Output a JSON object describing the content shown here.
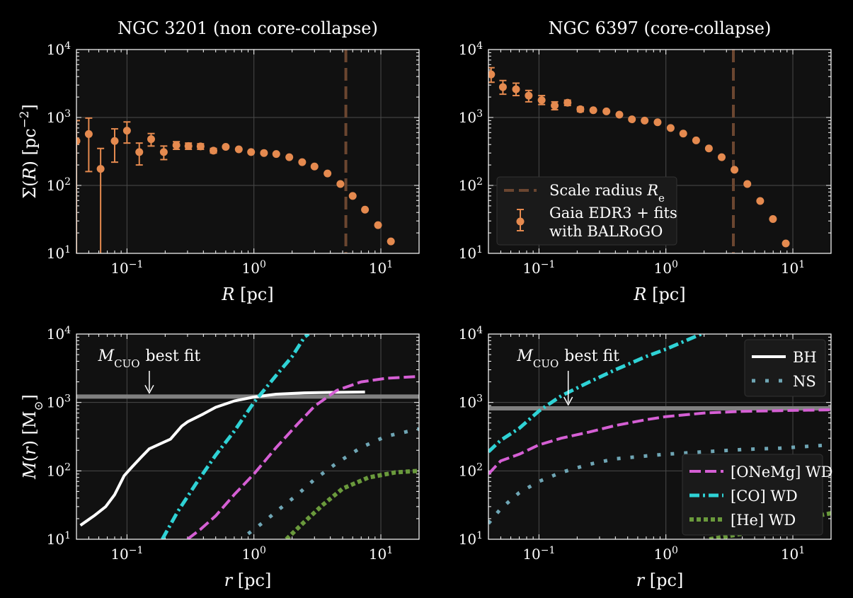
{
  "colors": {
    "background": "#000000",
    "axes_bg": "#111111",
    "grid": "#4a4a4a",
    "text": "#ffffff",
    "sigma_points": "#e58a4f",
    "scale_radius_line": "#6b4630",
    "cuo_line": "#808080",
    "BH": "#ffffff",
    "NS": "#6fa6b5",
    "ONeMg": "#d55fd4",
    "CO": "#2fd2d5",
    "He": "#6a9a3c"
  },
  "chart_data": [
    {
      "id": "top-left",
      "type": "scatter",
      "title": "NGC 3201 (non core-collapse)",
      "xlabel": "R [pc]",
      "ylabel": "Σ(R)  [pc⁻²]",
      "xscale": "log",
      "yscale": "log",
      "xlim": [
        0.04,
        20
      ],
      "ylim": [
        10,
        10000
      ],
      "grid": true,
      "xticks": [
        "10⁻¹",
        "10⁰",
        "10¹"
      ],
      "yticks": [
        "10¹",
        "10²",
        "10³",
        "10⁴"
      ],
      "scale_radius": 5.3,
      "points": [
        {
          "x": 0.04,
          "y": 450,
          "lo": 10,
          "hi": 900
        },
        {
          "x": 0.05,
          "y": 570,
          "lo": 160,
          "hi": 980
        },
        {
          "x": 0.062,
          "y": 175,
          "lo": 10,
          "hi": 350
        },
        {
          "x": 0.08,
          "y": 450,
          "lo": 220,
          "hi": 680
        },
        {
          "x": 0.1,
          "y": 640,
          "lo": 420,
          "hi": 860
        },
        {
          "x": 0.125,
          "y": 310,
          "lo": 200,
          "hi": 420
        },
        {
          "x": 0.155,
          "y": 480,
          "lo": 380,
          "hi": 580
        },
        {
          "x": 0.195,
          "y": 310,
          "lo": 240,
          "hi": 380
        },
        {
          "x": 0.245,
          "y": 390,
          "lo": 340,
          "hi": 440
        },
        {
          "x": 0.305,
          "y": 380,
          "lo": 340,
          "hi": 420
        },
        {
          "x": 0.38,
          "y": 375,
          "lo": 340,
          "hi": 410
        },
        {
          "x": 0.48,
          "y": 325,
          "lo": 300,
          "hi": 350
        },
        {
          "x": 0.6,
          "y": 370,
          "lo": 355,
          "hi": 385
        },
        {
          "x": 0.76,
          "y": 340
        },
        {
          "x": 0.95,
          "y": 310
        },
        {
          "x": 1.2,
          "y": 300
        },
        {
          "x": 1.5,
          "y": 290
        },
        {
          "x": 1.9,
          "y": 260
        },
        {
          "x": 2.4,
          "y": 220
        },
        {
          "x": 3.0,
          "y": 190
        },
        {
          "x": 3.8,
          "y": 150
        },
        {
          "x": 4.8,
          "y": 105
        },
        {
          "x": 6.0,
          "y": 70
        },
        {
          "x": 7.5,
          "y": 44
        },
        {
          "x": 9.5,
          "y": 26
        },
        {
          "x": 12.0,
          "y": 15
        }
      ]
    },
    {
      "id": "top-right",
      "type": "scatter",
      "title": "NGC 6397 (core-collapse)",
      "xlabel": "R [pc]",
      "ylabel": "",
      "xscale": "log",
      "yscale": "log",
      "xlim": [
        0.04,
        20
      ],
      "ylim": [
        10,
        10000
      ],
      "grid": true,
      "xticks": [
        "10⁻¹",
        "10⁰",
        "10¹"
      ],
      "yticks": [
        "10¹",
        "10²",
        "10³",
        "10⁴"
      ],
      "scale_radius": 3.4,
      "legend": {
        "placement": "center-left",
        "scale_label": "Scale radius ",
        "scale_symbol": "R",
        "scale_sub": "e",
        "points_label_1": "Gaia EDR3 + fits",
        "points_label_2": "with BALRoGO"
      },
      "points": [
        {
          "x": 0.042,
          "y": 4300,
          "lo": 3300,
          "hi": 5400
        },
        {
          "x": 0.052,
          "y": 2800,
          "lo": 2200,
          "hi": 3500
        },
        {
          "x": 0.066,
          "y": 2600,
          "lo": 2100,
          "hi": 3200
        },
        {
          "x": 0.083,
          "y": 2100,
          "lo": 1700,
          "hi": 2500
        },
        {
          "x": 0.105,
          "y": 1800,
          "lo": 1550,
          "hi": 2100
        },
        {
          "x": 0.133,
          "y": 1500,
          "lo": 1300,
          "hi": 1700
        },
        {
          "x": 0.168,
          "y": 1650,
          "lo": 1500,
          "hi": 1800
        },
        {
          "x": 0.212,
          "y": 1320,
          "lo": 1220,
          "hi": 1420
        },
        {
          "x": 0.268,
          "y": 1280
        },
        {
          "x": 0.34,
          "y": 1230
        },
        {
          "x": 0.43,
          "y": 1100
        },
        {
          "x": 0.54,
          "y": 940
        },
        {
          "x": 0.68,
          "y": 900
        },
        {
          "x": 0.86,
          "y": 850
        },
        {
          "x": 1.09,
          "y": 700
        },
        {
          "x": 1.37,
          "y": 580
        },
        {
          "x": 1.73,
          "y": 460
        },
        {
          "x": 2.18,
          "y": 350
        },
        {
          "x": 2.75,
          "y": 260
        },
        {
          "x": 3.47,
          "y": 170
        },
        {
          "x": 4.38,
          "y": 105
        },
        {
          "x": 5.53,
          "y": 59
        },
        {
          "x": 6.97,
          "y": 32
        },
        {
          "x": 8.8,
          "y": 14
        }
      ]
    },
    {
      "id": "bottom-left",
      "type": "line",
      "xlabel": "r [pc]",
      "ylabel": "M(r)  [M⊙]",
      "xscale": "log",
      "yscale": "log",
      "xlim": [
        0.04,
        20
      ],
      "ylim": [
        10,
        10000
      ],
      "grid": true,
      "xticks": [
        "10⁻¹",
        "10⁰",
        "10¹"
      ],
      "yticks": [
        "10¹",
        "10²",
        "10³",
        "10⁴"
      ],
      "cuo_value": 1220,
      "cuo_label": {
        "symbol": "M",
        "sub": "CUO",
        "text": "best fit",
        "at_x": 0.15
      },
      "series": [
        {
          "key": "BH",
          "style": "solid",
          "points": [
            [
              0.043,
              16
            ],
            [
              0.055,
              22
            ],
            [
              0.068,
              30
            ],
            [
              0.08,
              45
            ],
            [
              0.095,
              85
            ],
            [
              0.11,
              115
            ],
            [
              0.13,
              160
            ],
            [
              0.15,
              210
            ],
            [
              0.18,
              245
            ],
            [
              0.22,
              290
            ],
            [
              0.27,
              450
            ],
            [
              0.3,
              520
            ],
            [
              0.4,
              680
            ],
            [
              0.5,
              850
            ],
            [
              0.7,
              1050
            ],
            [
              1.0,
              1200
            ],
            [
              1.5,
              1320
            ],
            [
              2.5,
              1380
            ],
            [
              4.0,
              1400
            ],
            [
              7.5,
              1420
            ]
          ]
        },
        {
          "key": "NS",
          "style": "dotted",
          "points": [
            [
              0.9,
              12
            ],
            [
              1.2,
              18
            ],
            [
              1.6,
              28
            ],
            [
              2.2,
              45
            ],
            [
              3.0,
              75
            ],
            [
              4.5,
              130
            ],
            [
              7.0,
              220
            ],
            [
              11.0,
              320
            ],
            [
              20.0,
              410
            ]
          ]
        },
        {
          "key": "ONeMg",
          "style": "dashed",
          "points": [
            [
              0.3,
              10
            ],
            [
              0.38,
              14
            ],
            [
              0.5,
              22
            ],
            [
              0.7,
              45
            ],
            [
              1.0,
              90
            ],
            [
              1.5,
              220
            ],
            [
              2.2,
              480
            ],
            [
              3.0,
              880
            ],
            [
              4.5,
              1500
            ],
            [
              7.0,
              2000
            ],
            [
              11.0,
              2250
            ],
            [
              20.0,
              2400
            ]
          ]
        },
        {
          "key": "CO",
          "style": "dashdot",
          "points": [
            [
              0.19,
              10
            ],
            [
              0.25,
              25
            ],
            [
              0.35,
              65
            ],
            [
              0.5,
              170
            ],
            [
              0.7,
              380
            ],
            [
              1.0,
              1000
            ],
            [
              1.5,
              2500
            ],
            [
              2.0,
              4700
            ],
            [
              2.5,
              9000
            ],
            [
              2.7,
              10000
            ]
          ]
        },
        {
          "key": "He",
          "style": "dotted-thick",
          "points": [
            [
              1.8,
              10
            ],
            [
              2.5,
              18
            ],
            [
              3.5,
              32
            ],
            [
              5.0,
              55
            ],
            [
              8.0,
              80
            ],
            [
              13.0,
              95
            ],
            [
              20.0,
              100
            ]
          ]
        }
      ]
    },
    {
      "id": "bottom-right",
      "type": "line",
      "xlabel": "r [pc]",
      "ylabel": "",
      "xscale": "log",
      "yscale": "log",
      "xlim": [
        0.04,
        20
      ],
      "ylim": [
        10,
        10000
      ],
      "grid": true,
      "xticks": [
        "10⁻¹",
        "10⁰",
        "10¹"
      ],
      "yticks": [
        "10¹",
        "10²",
        "10³",
        "10⁴"
      ],
      "cuo_value": 820,
      "cuo_label": {
        "symbol": "M",
        "sub": "CUO",
        "text": "best fit",
        "at_x": 0.17
      },
      "legend_upper": {
        "placement": "top-right",
        "entries": [
          {
            "key": "BH",
            "label": "BH"
          },
          {
            "key": "NS",
            "label": "NS"
          }
        ]
      },
      "legend_lower": {
        "placement": "bottom-right",
        "entries": [
          {
            "key": "ONeMg",
            "label": "[ONeMg] WD"
          },
          {
            "key": "CO",
            "label": "[CO] WD"
          },
          {
            "key": "He",
            "label": "[He] WD"
          }
        ]
      },
      "series": [
        {
          "key": "NS",
          "style": "dotted",
          "points": [
            [
              0.04,
              17
            ],
            [
              0.05,
              28
            ],
            [
              0.07,
              48
            ],
            [
              0.1,
              70
            ],
            [
              0.15,
              95
            ],
            [
              0.25,
              125
            ],
            [
              0.4,
              150
            ],
            [
              0.7,
              165
            ],
            [
              1.0,
              175
            ],
            [
              2.0,
              190
            ],
            [
              4.0,
              205
            ],
            [
              8.0,
              215
            ],
            [
              20.0,
              240
            ]
          ]
        },
        {
          "key": "ONeMg",
          "style": "dashed",
          "points": [
            [
              0.04,
              90
            ],
            [
              0.05,
              140
            ],
            [
              0.07,
              175
            ],
            [
              0.1,
              240
            ],
            [
              0.15,
              300
            ],
            [
              0.25,
              370
            ],
            [
              0.4,
              460
            ],
            [
              0.7,
              560
            ],
            [
              1.0,
              620
            ],
            [
              2.0,
              700
            ],
            [
              4.0,
              740
            ],
            [
              8.0,
              760
            ],
            [
              20.0,
              780
            ]
          ]
        },
        {
          "key": "CO",
          "style": "dashdot",
          "points": [
            [
              0.04,
              190
            ],
            [
              0.05,
              280
            ],
            [
              0.07,
              420
            ],
            [
              0.1,
              750
            ],
            [
              0.15,
              1250
            ],
            [
              0.25,
              2000
            ],
            [
              0.4,
              3000
            ],
            [
              0.7,
              4700
            ],
            [
              1.0,
              6000
            ],
            [
              1.5,
              8300
            ],
            [
              1.9,
              10000
            ]
          ]
        },
        {
          "key": "He",
          "style": "dotted-thick",
          "points": [
            [
              2.2,
              10
            ],
            [
              3.0,
              11
            ],
            [
              5.0,
              13
            ],
            [
              8.0,
              17
            ],
            [
              12.0,
              20
            ],
            [
              20.0,
              24
            ]
          ]
        }
      ]
    }
  ]
}
